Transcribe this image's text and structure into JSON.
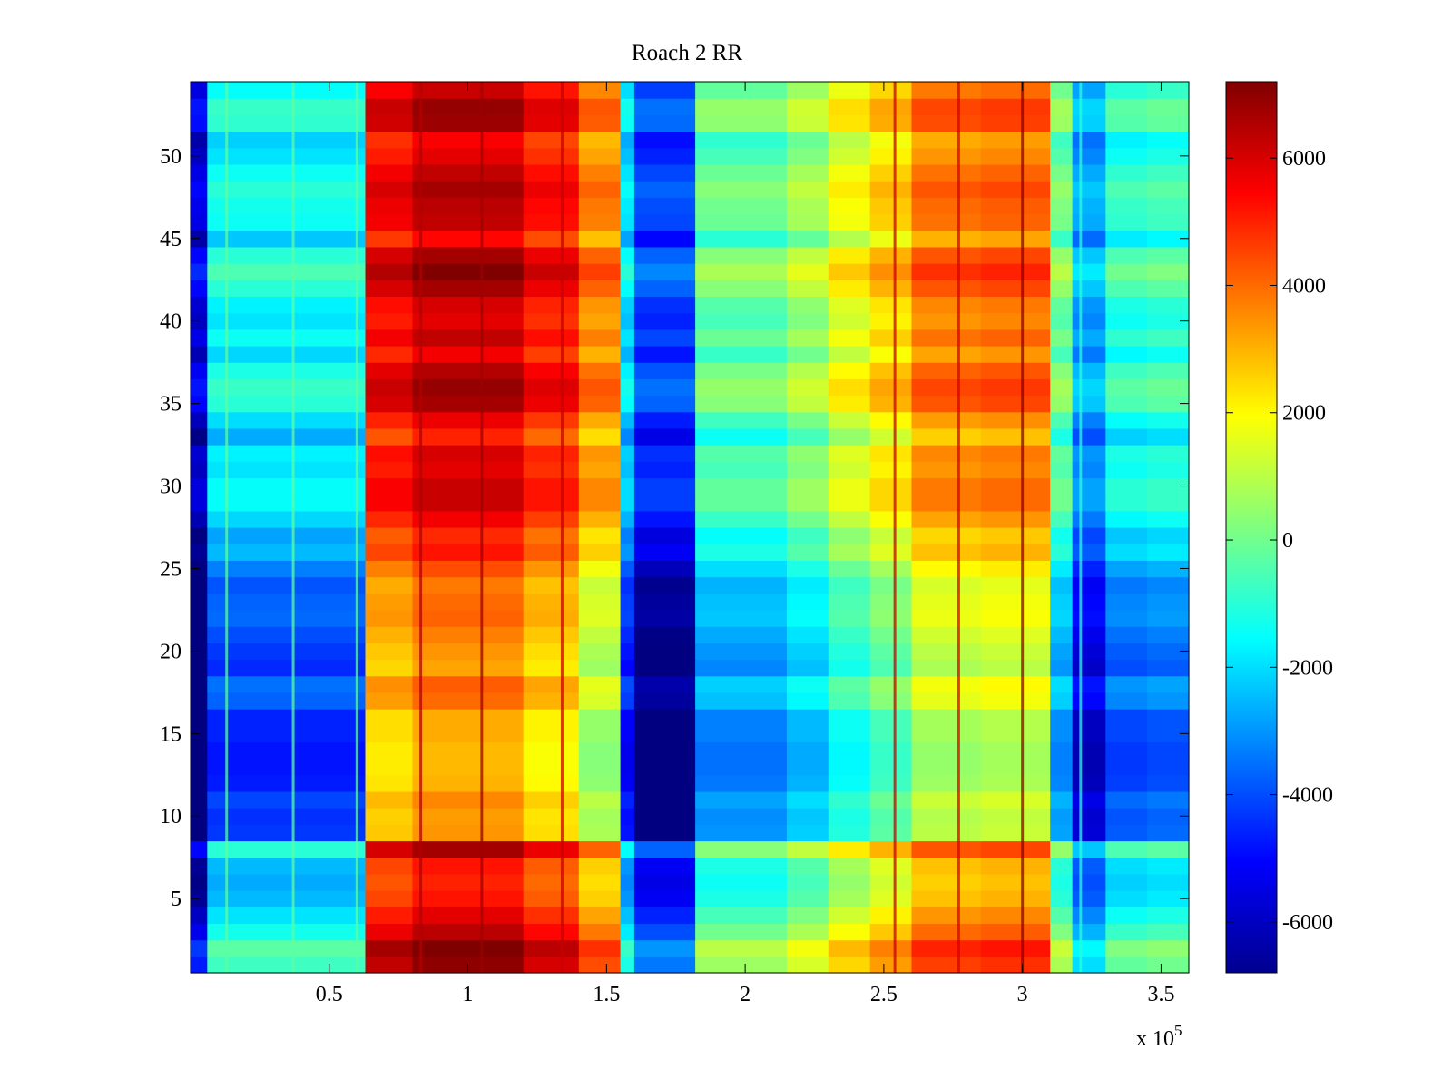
{
  "chart_data": {
    "type": "heatmap",
    "title": "Roach 2 RR",
    "xlabel": "",
    "ylabel": "",
    "x_range": [
      0,
      360000
    ],
    "y_range": [
      0.5,
      54.5
    ],
    "x_ticks": [
      0.5,
      1,
      1.5,
      2,
      2.5,
      3,
      3.5
    ],
    "x_tick_labels": [
      "0.5",
      "1",
      "1.5",
      "2",
      "2.5",
      "3",
      "3.5"
    ],
    "x_multiplier": {
      "base": "x 10",
      "exponent": "5"
    },
    "y_ticks": [
      5,
      10,
      15,
      20,
      25,
      30,
      35,
      40,
      45,
      50
    ],
    "y_tick_labels": [
      "5",
      "10",
      "15",
      "20",
      "25",
      "30",
      "35",
      "40",
      "45",
      "50"
    ],
    "colorbar": {
      "colormap": "jet",
      "range": [
        -6800,
        7200
      ],
      "ticks": [
        -6000,
        -4000,
        -2000,
        0,
        2000,
        4000,
        6000
      ],
      "tick_labels": [
        "-6000",
        "-4000",
        "-2000",
        "0",
        "2000",
        "4000",
        "6000"
      ]
    },
    "grid": false,
    "column_bands": [
      {
        "x_start": 0,
        "x_end": 6000,
        "value": -6500
      },
      {
        "x_start": 6000,
        "x_end": 63000,
        "value": -2500
      },
      {
        "x_start": 63000,
        "x_end": 80000,
        "value": 4500
      },
      {
        "x_start": 80000,
        "x_end": 120000,
        "value": 5200
      },
      {
        "x_start": 120000,
        "x_end": 140000,
        "value": 4200
      },
      {
        "x_start": 140000,
        "x_end": 155000,
        "value": 2600
      },
      {
        "x_start": 155000,
        "x_end": 160000,
        "value": -3000
      },
      {
        "x_start": 160000,
        "x_end": 182000,
        "value": -5200
      },
      {
        "x_start": 182000,
        "x_end": 215000,
        "value": -1200
      },
      {
        "x_start": 215000,
        "x_end": 230000,
        "value": -400
      },
      {
        "x_start": 230000,
        "x_end": 245000,
        "value": 700
      },
      {
        "x_start": 245000,
        "x_end": 260000,
        "value": 1500
      },
      {
        "x_start": 260000,
        "x_end": 285000,
        "value": 2800
      },
      {
        "x_start": 285000,
        "x_end": 310000,
        "value": 3000
      },
      {
        "x_start": 310000,
        "x_end": 318000,
        "value": -1000
      },
      {
        "x_start": 318000,
        "x_end": 330000,
        "value": -3800
      },
      {
        "x_start": 330000,
        "x_end": 345000,
        "value": -2000
      },
      {
        "x_start": 345000,
        "x_end": 360000,
        "value": -1800
      }
    ],
    "row_offsets": [
      1800,
      2200,
      1200,
      600,
      0,
      -200,
      0,
      1500,
      -1800,
      -1900,
      -1600,
      -2200,
      -2300,
      -2300,
      -2100,
      -2100,
      -1200,
      -1000,
      -2000,
      -1800,
      -1500,
      -1100,
      -1200,
      -1400,
      -800,
      0,
      -300,
      400,
      1000,
      1000,
      600,
      800,
      -200,
      500,
      1500,
      1700,
      1300,
      400,
      1100,
      600,
      800,
      1500,
      2000,
      1500,
      200,
      1100,
      1200,
      1500,
      1100,
      600,
      300,
      1600,
      1700,
      1000
    ],
    "vertical_streaks": [
      {
        "x": 13000,
        "value": -300
      },
      {
        "x": 37000,
        "value": -300
      },
      {
        "x": 60000,
        "value": -300
      },
      {
        "x": 83000,
        "value": 6500
      },
      {
        "x": 105000,
        "value": 6800
      },
      {
        "x": 134000,
        "value": 6200
      },
      {
        "x": 254000,
        "value": 6200
      },
      {
        "x": 277000,
        "value": 6000
      },
      {
        "x": 300000,
        "value": 7000
      },
      {
        "x": 321000,
        "value": -1000
      }
    ]
  }
}
